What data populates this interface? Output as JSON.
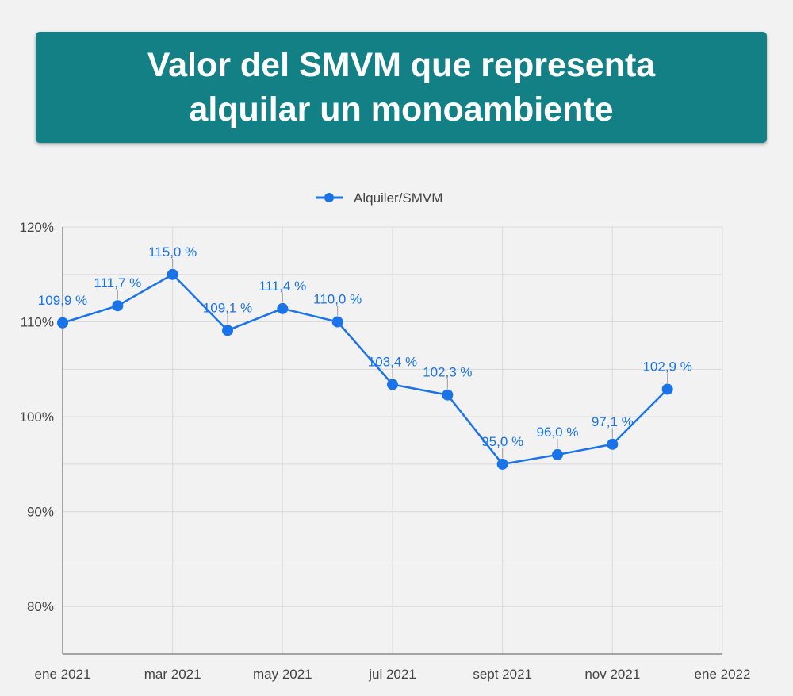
{
  "chart_data": {
    "type": "line",
    "title": "Valor del SMVM que representa alquilar un monoambiente",
    "legend": {
      "label": "Alquiler/SMVM",
      "placement": "top-center"
    },
    "series": [
      {
        "name": "Alquiler/SMVM",
        "color": "#1a73e8",
        "x": [
          "2021-01",
          "2021-02",
          "2021-03",
          "2021-04",
          "2021-05",
          "2021-06",
          "2021-07",
          "2021-08",
          "2021-09",
          "2021-10",
          "2021-11",
          "2021-12"
        ],
        "values": [
          109.9,
          111.7,
          115.0,
          109.1,
          111.4,
          110.0,
          103.4,
          102.3,
          95.0,
          96.0,
          97.1,
          102.9
        ],
        "data_labels": [
          "109,9 %",
          "111,7 %",
          "115,0 %",
          "109,1 %",
          "111,4 %",
          "110,0 %",
          "103,4 %",
          "102,3 %",
          "95,0 %",
          "96,0 %",
          "97,1 %",
          "102,9 %"
        ]
      }
    ],
    "x_ticks": [
      "ene 2021",
      "mar 2021",
      "may 2021",
      "jul 2021",
      "sept 2021",
      "nov 2021",
      "ene 2022"
    ],
    "x_tick_months": [
      0,
      2,
      4,
      6,
      8,
      10,
      12
    ],
    "y_ticks": [
      80,
      90,
      100,
      110,
      120
    ],
    "y_tick_labels": [
      "80%",
      "90%",
      "100%",
      "110%",
      "120%"
    ],
    "ylim": [
      75,
      120
    ],
    "xlabel": "",
    "ylabel": "",
    "grid": true
  }
}
